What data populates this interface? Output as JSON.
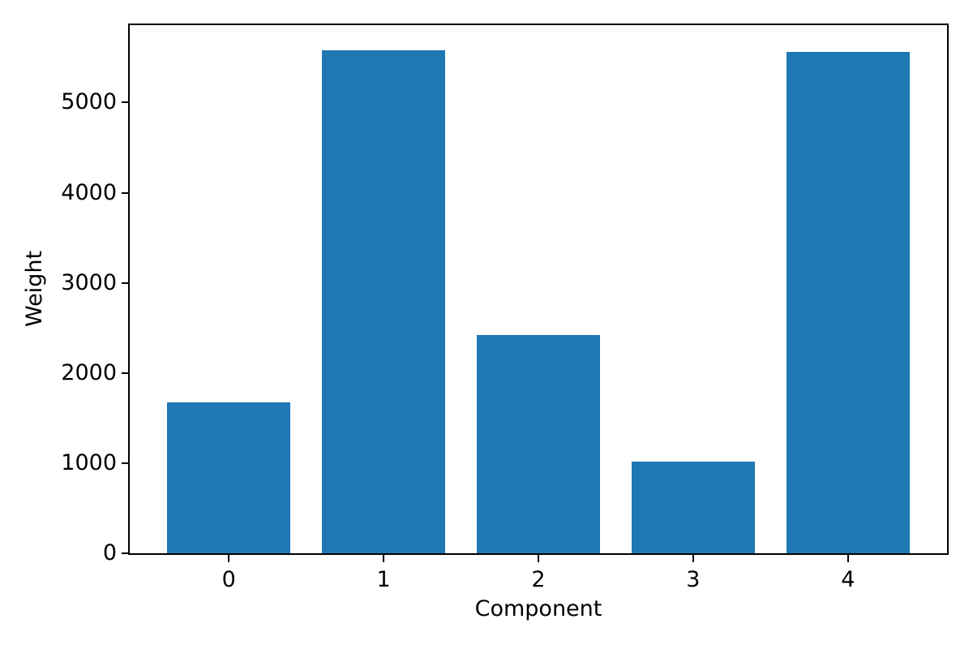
{
  "chart_data": {
    "type": "bar",
    "title": "",
    "xlabel": "Component",
    "ylabel": "Weight",
    "categories": [
      "0",
      "1",
      "2",
      "3",
      "4"
    ],
    "values": [
      1670,
      5580,
      2420,
      1015,
      5560
    ],
    "yticks": [
      0,
      1000,
      2000,
      3000,
      4000,
      5000
    ],
    "ylim": [
      0,
      5859
    ],
    "xlim": [
      -0.64,
      4.64
    ],
    "bar_width": 0.8,
    "bar_color": "#1f77b4",
    "axis_color": "#000000",
    "background_color": "#ffffff",
    "grid": false,
    "legend_position": "none"
  }
}
